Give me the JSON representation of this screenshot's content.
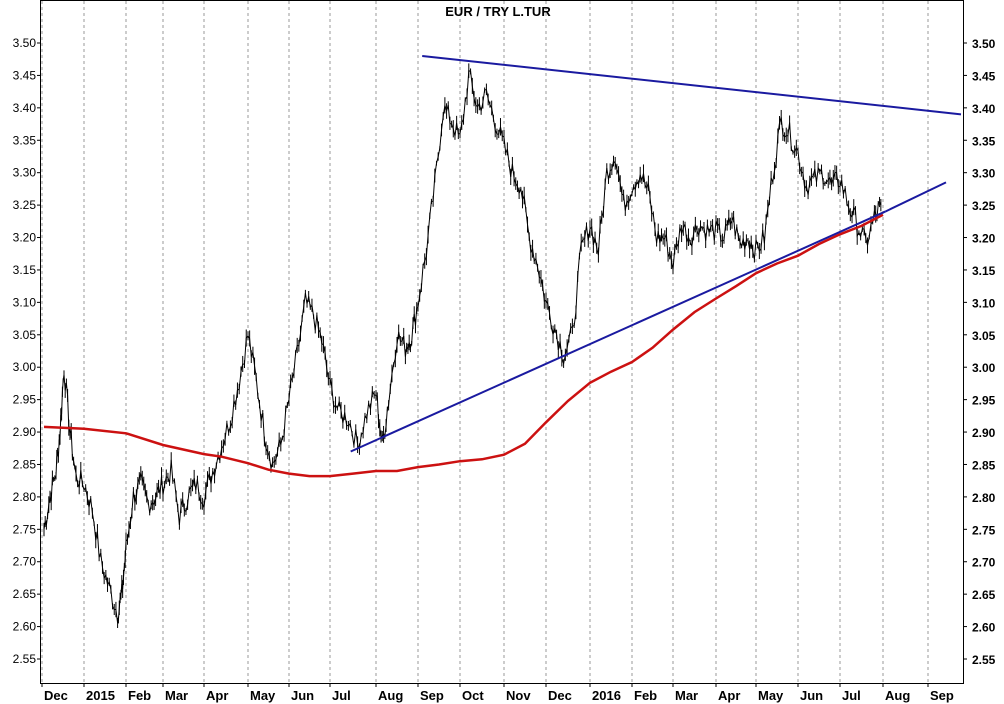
{
  "chart_data": {
    "type": "line",
    "title": "EUR / TRY L.TUR",
    "ylim": [
      2.5,
      3.55
    ],
    "yticks": [
      "3.50",
      "3.45",
      "3.40",
      "3.35",
      "3.30",
      "3.25",
      "3.20",
      "3.15",
      "3.10",
      "3.05",
      "3.00",
      "2.95",
      "2.90",
      "2.85",
      "2.80",
      "2.75",
      "2.70",
      "2.65",
      "2.60",
      "2.55"
    ],
    "xticks": [
      "Dec",
      "2015",
      "Feb",
      "Mar",
      "Apr",
      "May",
      "Jun",
      "Jul",
      "Aug",
      "Sep",
      "Oct",
      "Nov",
      "Dec",
      "2016",
      "Feb",
      "Mar",
      "Apr",
      "May",
      "Jun",
      "Jul",
      "Aug",
      "Sep"
    ],
    "grid": "vertical dotted",
    "colors": {
      "price": "#000000",
      "moving_average": "#cc1111",
      "trendlines": "#1a1aa0"
    },
    "series": [
      {
        "name": "",
        "kind": "price",
        "x": [
          0,
          0.15,
          0.3,
          0.4,
          0.5,
          0.65,
          0.8,
          1.0,
          1.2,
          1.4,
          1.6,
          1.8,
          1.9,
          2.0,
          2.2,
          2.4,
          2.6,
          2.8,
          3.0,
          3.2,
          3.4,
          3.6,
          3.8,
          4.0,
          4.2,
          4.4,
          4.6,
          4.8,
          5.0,
          5.2,
          5.4,
          5.6,
          5.8,
          6.0,
          6.2,
          6.4,
          6.6,
          6.8,
          7.0,
          7.2,
          7.4,
          7.6,
          7.8,
          8.0,
          8.15,
          8.3,
          8.5,
          8.7,
          8.85,
          9.0,
          9.2,
          9.4,
          9.6,
          9.8,
          10.0,
          10.2,
          10.4,
          10.6,
          10.8,
          11.0,
          11.2,
          11.4,
          11.6,
          11.8,
          12.0,
          12.2,
          12.4,
          12.6,
          12.8,
          13.0,
          13.2,
          13.4,
          13.6,
          13.8,
          14.0,
          14.2,
          14.4,
          14.6,
          14.8,
          15.0,
          15.2,
          15.4,
          15.6,
          15.8,
          16.0,
          16.2,
          16.4,
          16.6,
          16.8,
          17.0,
          17.2,
          17.4,
          17.6,
          17.8,
          18.0,
          18.2,
          18.4,
          18.6,
          18.8,
          19.0,
          19.2,
          19.4,
          19.6,
          19.8,
          19.95
        ],
        "values": [
          2.75,
          2.8,
          2.84,
          2.9,
          3.0,
          2.9,
          2.83,
          2.82,
          2.78,
          2.7,
          2.66,
          2.62,
          2.65,
          2.72,
          2.8,
          2.82,
          2.79,
          2.8,
          2.82,
          2.84,
          2.77,
          2.8,
          2.82,
          2.8,
          2.84,
          2.88,
          2.92,
          2.98,
          3.05,
          2.98,
          2.9,
          2.85,
          2.88,
          2.95,
          3.02,
          3.1,
          3.08,
          3.04,
          2.97,
          2.93,
          2.92,
          2.88,
          2.93,
          2.96,
          2.88,
          2.95,
          3.05,
          3.03,
          3.05,
          3.1,
          3.18,
          3.28,
          3.4,
          3.38,
          3.35,
          3.45,
          3.4,
          3.42,
          3.38,
          3.34,
          3.3,
          3.28,
          3.2,
          3.16,
          3.1,
          3.06,
          3.02,
          3.05,
          3.18,
          3.22,
          3.18,
          3.3,
          3.33,
          3.25,
          3.28,
          3.3,
          3.27,
          3.2,
          3.2,
          3.16,
          3.22,
          3.2,
          3.22,
          3.21,
          3.21,
          3.2,
          3.23,
          3.19,
          3.2,
          3.18,
          3.2,
          3.3,
          3.38,
          3.36,
          3.33,
          3.28,
          3.29,
          3.3,
          3.28,
          3.29,
          3.25,
          3.22,
          3.19,
          3.23,
          3.25
        ]
      },
      {
        "name": "",
        "kind": "moving_average",
        "x": [
          0,
          1,
          2,
          3,
          4,
          4.4,
          5,
          5.5,
          6,
          6.5,
          7,
          7.5,
          8,
          8.5,
          9,
          9.5,
          10,
          10.5,
          11,
          11.5,
          12,
          12.5,
          13,
          13.5,
          14,
          14.5,
          15,
          15.5,
          16,
          16.5,
          17,
          17.5,
          18,
          18.5,
          19,
          19.5,
          20
        ],
        "values": [
          2.908,
          2.905,
          2.898,
          2.88,
          2.866,
          2.862,
          2.852,
          2.842,
          2.836,
          2.832,
          2.832,
          2.836,
          2.84,
          2.84,
          2.846,
          2.85,
          2.855,
          2.858,
          2.865,
          2.882,
          2.915,
          2.948,
          2.976,
          2.993,
          3.008,
          3.03,
          3.058,
          3.085,
          3.106,
          3.125,
          3.145,
          3.16,
          3.172,
          3.19,
          3.205,
          3.218,
          3.235
        ]
      },
      {
        "name": "",
        "kind": "trendline",
        "x": [
          7.45,
          20.05
        ],
        "values": [
          2.87,
          3.24
        ]
      },
      {
        "name": "",
        "kind": "trendline",
        "x": [
          20.05,
          21.9
        ],
        "values": [
          3.24,
          3.285
        ]
      },
      {
        "name": "",
        "kind": "trendline",
        "x": [
          9.1,
          22.65
        ],
        "values": [
          3.48,
          3.39
        ]
      }
    ]
  }
}
